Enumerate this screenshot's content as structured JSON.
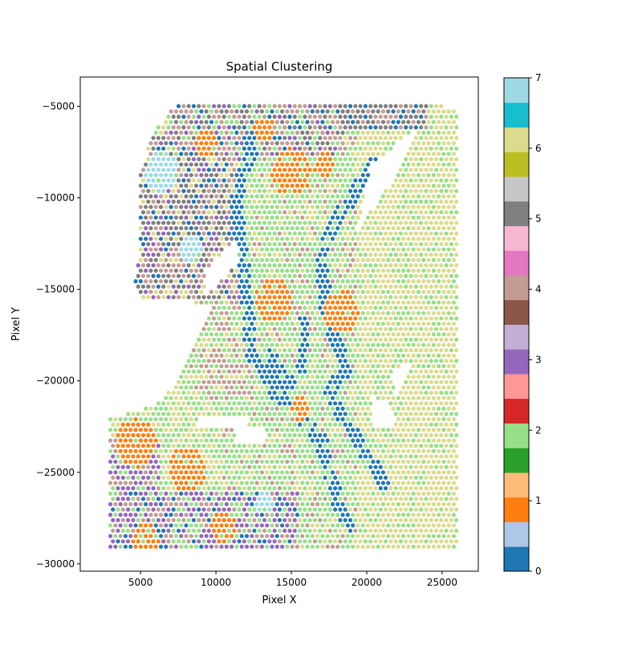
{
  "chart_data": {
    "type": "scatter",
    "title": "Spatial Clustering",
    "xlabel": "Pixel X",
    "ylabel": "Pixel Y",
    "xlim": [
      1000,
      27400
    ],
    "ylim": [
      -30400,
      -3400
    ],
    "x_ticks": [
      5000,
      10000,
      15000,
      20000,
      25000
    ],
    "y_ticks": [
      -5000,
      -10000,
      -15000,
      -20000,
      -25000,
      -30000
    ],
    "x_tick_labels": [
      "5000",
      "10000",
      "15000",
      "20000",
      "25000"
    ],
    "y_tick_labels": [
      "−5000",
      "−10000",
      "−15000",
      "−20000",
      "−25000",
      "−30000"
    ],
    "grid": false,
    "colormap": "tab20",
    "colorbar": {
      "min": 0,
      "max": 7,
      "ticks": [
        0,
        1,
        2,
        3,
        4,
        5,
        6,
        7
      ],
      "tick_labels": [
        "0",
        "1",
        "2",
        "3",
        "4",
        "5",
        "6",
        "7"
      ],
      "band_colors": [
        "#1f77b4",
        "#aec7e8",
        "#ff7f0e",
        "#ffbb78",
        "#2ca02c",
        "#98df8a",
        "#d62728",
        "#ff9896",
        "#9467bd",
        "#c5b0d5",
        "#8c564b",
        "#c49c94",
        "#e377c2",
        "#f7b6d2",
        "#7f7f7f",
        "#c7c7c7",
        "#bcbd22",
        "#dbdb8d",
        "#17becf",
        "#9edae5"
      ]
    },
    "cluster_colors": {
      "0": "#1f77b4",
      "1": "#ff7f0e",
      "2": "#98df8a",
      "3": "#9467bd",
      "4": "#c49c94",
      "5": "#7f7f7f",
      "6": "#dbdb8d",
      "7": "#9edae5"
    },
    "spot_grid": {
      "x_min": 3000,
      "x_max": 26100,
      "x_step": 335,
      "y_min": -29100,
      "y_max": -4700,
      "y_step": 290
    },
    "cluster_regions": [
      {
        "cluster": 1,
        "center": [
          4700,
          -23400
        ],
        "radius": 1350
      },
      {
        "cluster": 1,
        "center": [
          8100,
          -24800
        ],
        "radius": 1250
      },
      {
        "cluster": 1,
        "center": [
          5300,
          -28700
        ],
        "radius": 900
      },
      {
        "cluster": 1,
        "center": [
          10500,
          -28000
        ],
        "radius": 850
      },
      {
        "cluster": 1,
        "center": [
          13800,
          -15600
        ],
        "radius": 1200
      },
      {
        "cluster": 1,
        "center": [
          15000,
          -8600
        ],
        "radius": 1300
      },
      {
        "cluster": 1,
        "center": [
          18300,
          -16200
        ],
        "radius": 1150
      },
      {
        "cluster": 1,
        "center": [
          13200,
          -6300
        ],
        "radius": 700
      },
      {
        "cluster": 1,
        "center": [
          9400,
          -7000
        ],
        "radius": 800
      },
      {
        "cluster": 1,
        "center": [
          17200,
          -8200
        ],
        "radius": 700
      },
      {
        "cluster": 1,
        "center": [
          15600,
          -21500
        ],
        "radius": 650
      },
      {
        "cluster": 7,
        "center": [
          6400,
          -8600
        ],
        "radius": 1100
      },
      {
        "cluster": 7,
        "center": [
          8300,
          -12800
        ],
        "radius": 800
      },
      {
        "cluster": 7,
        "center": [
          13200,
          -26700
        ],
        "radius": 600
      }
    ]
  }
}
